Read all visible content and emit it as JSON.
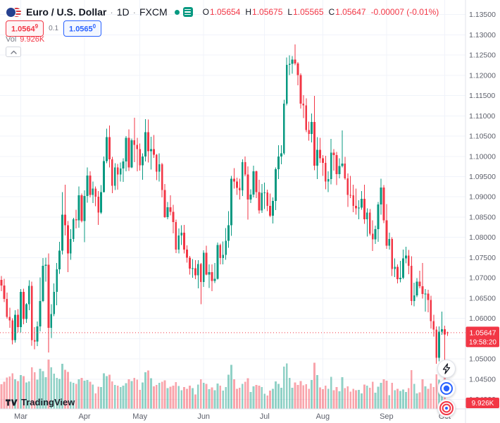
{
  "header": {
    "title": {
      "symbol": "Euro / U.S. Dollar",
      "dot": "·",
      "interval": "1D",
      "exchange": "FXCM"
    },
    "ohlc": {
      "open_label": "O",
      "open": "1.05654",
      "high_label": "H",
      "high": "1.05675",
      "low_label": "L",
      "low": "1.05565",
      "close_label": "C",
      "close": "1.05647",
      "change": "-0.00007 (-0.01%)"
    },
    "trade": {
      "sell_main": "1.0564",
      "sell_sup": "9",
      "spread": "0.1",
      "buy_main": "1.0565",
      "buy_sup": "0"
    },
    "volume": {
      "label": "Vol",
      "value": "9.926K"
    }
  },
  "attribution": {
    "text": "TradingView"
  },
  "chart_data": {
    "type": "candlestick",
    "title": "Euro / U.S. Dollar · 1D · FXCM",
    "symbol": "EUR/USD",
    "interval": "1D",
    "exchange": "FXCM",
    "price_axis": {
      "min": 1.038,
      "max": 1.1372,
      "ticks": [
        "1.13500",
        "1.13000",
        "1.12500",
        "1.12000",
        "1.11500",
        "1.11000",
        "1.10500",
        "1.10000",
        "1.09500",
        "1.09000",
        "1.08500",
        "1.08000",
        "1.07500",
        "1.07000",
        "1.06500",
        "1.06000",
        "1.05500",
        "1.05000",
        "1.04500",
        "1.04000"
      ]
    },
    "time_axis": {
      "months": [
        {
          "label": "Mar",
          "index": 7
        },
        {
          "label": "Apr",
          "index": 30
        },
        {
          "label": "May",
          "index": 50
        },
        {
          "label": "Jun",
          "index": 73
        },
        {
          "label": "Jul",
          "index": 95
        },
        {
          "label": "Aug",
          "index": 116
        },
        {
          "label": "Sep",
          "index": 139
        },
        {
          "label": "Oct",
          "index": 160
        }
      ]
    },
    "current": {
      "price": "1.05647",
      "countdown": "19:58:20",
      "volume": "9.926K",
      "direction": "down"
    },
    "colors": {
      "up": "#089981",
      "down": "#f23645",
      "grid": "#f0f3fa",
      "axis_text": "#5d606b",
      "current": "#f23645",
      "accent_blue": "#2962ff"
    },
    "volume_opacity": 0.45,
    "candles": [
      [
        1.0695,
        1.0705,
        1.0667,
        1.0681,
        155
      ],
      [
        1.0681,
        1.0698,
        1.064,
        1.0648,
        171
      ],
      [
        1.0648,
        1.0664,
        1.0599,
        1.0604,
        198
      ],
      [
        1.0604,
        1.0626,
        1.0577,
        1.0595,
        204
      ],
      [
        1.0595,
        1.06,
        1.0536,
        1.0546,
        226
      ],
      [
        1.0546,
        1.062,
        1.054,
        1.0609,
        188
      ],
      [
        1.0609,
        1.0623,
        1.0565,
        1.0578,
        176
      ],
      [
        1.0578,
        1.0672,
        1.0565,
        1.0665,
        214
      ],
      [
        1.0665,
        1.0673,
        1.0585,
        1.0598,
        207
      ],
      [
        1.0598,
        1.0638,
        1.0589,
        1.0635,
        167
      ],
      [
        1.0635,
        1.0694,
        1.062,
        1.068,
        173
      ],
      [
        1.068,
        1.0691,
        1.0532,
        1.0546,
        262
      ],
      [
        1.0546,
        1.0578,
        1.0524,
        1.0543,
        231
      ],
      [
        1.0543,
        1.0592,
        1.0531,
        1.058,
        186
      ],
      [
        1.058,
        1.0701,
        1.0568,
        1.0643,
        255
      ],
      [
        1.0643,
        1.0749,
        1.064,
        1.073,
        238
      ],
      [
        1.073,
        1.075,
        1.0691,
        1.0732,
        201
      ],
      [
        1.0732,
        1.076,
        1.0516,
        1.0577,
        312
      ],
      [
        1.0577,
        1.0635,
        1.0551,
        1.0611,
        264
      ],
      [
        1.0611,
        1.0686,
        1.0605,
        1.0665,
        222
      ],
      [
        1.0665,
        1.0737,
        1.0632,
        1.0721,
        196
      ],
      [
        1.0721,
        1.0789,
        1.071,
        1.0767,
        189
      ],
      [
        1.0767,
        1.0912,
        1.0758,
        1.0856,
        286
      ],
      [
        1.0856,
        1.093,
        1.0805,
        1.083,
        247
      ],
      [
        1.083,
        1.084,
        1.0714,
        1.076,
        233
      ],
      [
        1.076,
        1.082,
        1.0745,
        1.0796,
        172
      ],
      [
        1.0796,
        1.0848,
        1.0789,
        1.0845,
        164
      ],
      [
        1.0845,
        1.0868,
        1.0822,
        1.0842,
        158
      ],
      [
        1.0842,
        1.0926,
        1.0824,
        1.0904,
        187
      ],
      [
        1.0904,
        1.0908,
        1.0837,
        1.084,
        196
      ],
      [
        1.084,
        1.0916,
        1.0788,
        1.0902,
        178
      ],
      [
        1.0902,
        1.0973,
        1.0886,
        1.0953,
        182
      ],
      [
        1.0953,
        1.0963,
        1.0899,
        1.0905,
        171
      ],
      [
        1.0905,
        1.0938,
        1.0885,
        1.092,
        153
      ],
      [
        1.092,
        1.0926,
        1.0877,
        1.09,
        98
      ],
      [
        1.09,
        1.0914,
        1.0831,
        1.0861,
        141
      ],
      [
        1.0861,
        1.0929,
        1.0858,
        1.0912,
        139
      ],
      [
        1.0912,
        1.1,
        1.0911,
        1.0988,
        224
      ],
      [
        1.0988,
        1.1068,
        1.0983,
        1.1047,
        208
      ],
      [
        1.1047,
        1.1076,
        1.0973,
        1.0993,
        216
      ],
      [
        1.0993,
        1.0999,
        1.0909,
        1.0927,
        174
      ],
      [
        1.0927,
        1.0983,
        1.0917,
        1.0973,
        152
      ],
      [
        1.0973,
        1.0981,
        1.0918,
        1.0955,
        148
      ],
      [
        1.0955,
        1.0985,
        1.0938,
        1.097,
        139
      ],
      [
        1.097,
        1.0995,
        1.0937,
        1.0987,
        146
      ],
      [
        1.0987,
        1.105,
        1.0963,
        1.1046,
        163
      ],
      [
        1.1046,
        1.1067,
        1.0964,
        1.0973,
        188
      ],
      [
        1.0973,
        1.1044,
        1.0971,
        1.104,
        176
      ],
      [
        1.104,
        1.1095,
        1.0986,
        1.1028,
        197
      ],
      [
        1.1028,
        1.1046,
        1.0963,
        1.1018,
        184
      ],
      [
        1.1018,
        1.1032,
        1.0965,
        1.0978,
        121
      ],
      [
        1.0978,
        1.1007,
        1.0942,
        1.1,
        168
      ],
      [
        1.1,
        1.1092,
        1.0987,
        1.106,
        231
      ],
      [
        1.106,
        1.1091,
        1.0985,
        1.1013,
        242
      ],
      [
        1.1013,
        1.1048,
        1.0967,
        1.1018,
        193
      ],
      [
        1.1018,
        1.1053,
        1.0996,
        1.1004,
        142
      ],
      [
        1.1004,
        1.1006,
        1.0941,
        1.0962,
        151
      ],
      [
        1.0962,
        1.1007,
        1.0938,
        1.098,
        164
      ],
      [
        1.098,
        1.0984,
        1.0899,
        1.0917,
        172
      ],
      [
        1.0917,
        1.0932,
        1.0848,
        1.085,
        181
      ],
      [
        1.085,
        1.0887,
        1.0845,
        1.0874,
        132
      ],
      [
        1.0874,
        1.0904,
        1.0854,
        1.0863,
        141
      ],
      [
        1.0863,
        1.088,
        1.081,
        1.0838,
        147
      ],
      [
        1.0838,
        1.0844,
        1.0761,
        1.077,
        169
      ],
      [
        1.077,
        1.0822,
        1.076,
        1.0805,
        144
      ],
      [
        1.0805,
        1.083,
        1.0781,
        1.0812,
        118
      ],
      [
        1.0812,
        1.0831,
        1.076,
        1.077,
        139
      ],
      [
        1.077,
        1.078,
        1.0738,
        1.075,
        128
      ],
      [
        1.075,
        1.0754,
        1.0708,
        1.0723,
        146
      ],
      [
        1.0723,
        1.0746,
        1.07,
        1.0724,
        131
      ],
      [
        1.0724,
        1.0744,
        1.0697,
        1.0706,
        92
      ],
      [
        1.0706,
        1.0744,
        1.0674,
        1.0734,
        153
      ],
      [
        1.0734,
        1.0737,
        1.0635,
        1.069,
        187
      ],
      [
        1.069,
        1.0768,
        1.0678,
        1.0762,
        166
      ],
      [
        1.0762,
        1.0779,
        1.0706,
        1.0708,
        158
      ],
      [
        1.0708,
        1.0733,
        1.0675,
        1.0714,
        124
      ],
      [
        1.0714,
        1.0733,
        1.0667,
        1.0692,
        137
      ],
      [
        1.0692,
        1.0737,
        1.0687,
        1.0698,
        119
      ],
      [
        1.0698,
        1.0787,
        1.0696,
        1.0781,
        161
      ],
      [
        1.0781,
        1.0785,
        1.0733,
        1.0749,
        148
      ],
      [
        1.0749,
        1.079,
        1.0733,
        1.0757,
        117
      ],
      [
        1.0757,
        1.0823,
        1.0745,
        1.0792,
        139
      ],
      [
        1.0792,
        1.0865,
        1.0774,
        1.083,
        216
      ],
      [
        1.083,
        1.0952,
        1.0804,
        1.0945,
        278
      ],
      [
        1.0945,
        1.0971,
        1.092,
        1.0938,
        187
      ],
      [
        1.0938,
        1.0947,
        1.0905,
        1.0922,
        126
      ],
      [
        1.0922,
        1.0945,
        1.0893,
        1.0916,
        134
      ],
      [
        1.0916,
        1.0993,
        1.0902,
        1.0986,
        158
      ],
      [
        1.0986,
        1.1,
        1.0951,
        1.0955,
        171
      ],
      [
        1.0955,
        1.0975,
        1.0844,
        1.0893,
        194
      ],
      [
        1.0893,
        1.0919,
        1.0885,
        1.0906,
        108
      ],
      [
        1.0906,
        1.0977,
        1.0899,
        1.0963,
        142
      ],
      [
        1.0963,
        1.0965,
        1.0897,
        1.0912,
        151
      ],
      [
        1.0912,
        1.0942,
        1.0859,
        1.0866,
        147
      ],
      [
        1.0866,
        1.0932,
        1.086,
        1.091,
        139
      ],
      [
        1.091,
        1.0935,
        1.087,
        1.0911,
        96
      ],
      [
        1.0911,
        1.0918,
        1.0865,
        1.0878,
        84
      ],
      [
        1.0878,
        1.0908,
        1.085,
        1.0853,
        117
      ],
      [
        1.0853,
        1.0899,
        1.0834,
        1.089,
        128
      ],
      [
        1.089,
        1.0973,
        1.0867,
        1.0968,
        173
      ],
      [
        1.0968,
        1.1027,
        1.0944,
        1.1,
        158
      ],
      [
        1.1,
        1.1027,
        1.098,
        1.1007,
        134
      ],
      [
        1.1007,
        1.114,
        1.1004,
        1.113,
        267
      ],
      [
        1.113,
        1.1244,
        1.1126,
        1.1226,
        288
      ],
      [
        1.1226,
        1.1249,
        1.1201,
        1.1228,
        196
      ],
      [
        1.1228,
        1.1248,
        1.1204,
        1.1239,
        133
      ],
      [
        1.1239,
        1.1276,
        1.1225,
        1.1229,
        168
      ],
      [
        1.1229,
        1.1233,
        1.1175,
        1.1201,
        151
      ],
      [
        1.1201,
        1.1205,
        1.1118,
        1.113,
        176
      ],
      [
        1.113,
        1.1151,
        1.1094,
        1.1126,
        149
      ],
      [
        1.1126,
        1.1143,
        1.106,
        1.1065,
        157
      ],
      [
        1.1065,
        1.1086,
        1.1039,
        1.1055,
        128
      ],
      [
        1.1055,
        1.1106,
        1.1034,
        1.1085,
        182
      ],
      [
        1.1085,
        1.1149,
        1.0966,
        1.0977,
        291
      ],
      [
        1.0977,
        1.1047,
        1.0944,
        1.1016,
        214
      ],
      [
        1.1016,
        1.1046,
        1.0984,
        1.0995,
        136
      ],
      [
        1.0995,
        1.1003,
        1.0952,
        1.0984,
        124
      ],
      [
        1.0984,
        1.1001,
        1.0919,
        1.0938,
        146
      ],
      [
        1.0938,
        1.0963,
        1.0912,
        1.0944,
        127
      ],
      [
        1.0944,
        1.1043,
        1.0931,
        1.1009,
        203
      ],
      [
        1.1009,
        1.1018,
        1.0965,
        1.1003,
        118
      ],
      [
        1.1003,
        1.1011,
        1.0929,
        1.0956,
        139
      ],
      [
        1.0956,
        1.0995,
        1.0946,
        1.0976,
        112
      ],
      [
        1.0976,
        1.1064,
        1.0973,
        1.0982,
        201
      ],
      [
        1.0982,
        1.0999,
        1.0942,
        1.0946,
        131
      ],
      [
        1.0946,
        1.0958,
        1.0875,
        1.0905,
        142
      ],
      [
        1.0905,
        1.0952,
        1.0897,
        1.0904,
        109
      ],
      [
        1.0904,
        1.093,
        1.0862,
        1.0878,
        126
      ],
      [
        1.0878,
        1.092,
        1.0856,
        1.0872,
        118
      ],
      [
        1.0872,
        1.0892,
        1.0845,
        1.0873,
        121
      ],
      [
        1.0873,
        1.0914,
        1.0868,
        1.0895,
        97
      ],
      [
        1.0895,
        1.093,
        1.0833,
        1.0845,
        153
      ],
      [
        1.0845,
        1.0872,
        1.0802,
        1.0861,
        147
      ],
      [
        1.0861,
        1.087,
        1.0805,
        1.0809,
        134
      ],
      [
        1.0809,
        1.0842,
        1.0766,
        1.0795,
        172
      ],
      [
        1.0795,
        1.0829,
        1.0784,
        1.082,
        103
      ],
      [
        1.082,
        1.0887,
        1.0789,
        1.0881,
        141
      ],
      [
        1.0881,
        1.0945,
        1.0856,
        1.0923,
        166
      ],
      [
        1.0923,
        1.0929,
        1.0835,
        1.0842,
        187
      ],
      [
        1.0842,
        1.0882,
        1.0772,
        1.0779,
        178
      ],
      [
        1.0779,
        1.0812,
        1.077,
        1.0796,
        88
      ],
      [
        1.0796,
        1.08,
        1.0705,
        1.0722,
        164
      ],
      [
        1.0722,
        1.0748,
        1.0702,
        1.0727,
        119
      ],
      [
        1.0727,
        1.0733,
        1.0686,
        1.0697,
        127
      ],
      [
        1.0697,
        1.0742,
        1.0689,
        1.07,
        113
      ],
      [
        1.07,
        1.077,
        1.0697,
        1.0748,
        122
      ],
      [
        1.0748,
        1.0777,
        1.0736,
        1.0755,
        108
      ],
      [
        1.0755,
        1.0769,
        1.0709,
        1.073,
        131
      ],
      [
        1.073,
        1.0753,
        1.0632,
        1.0643,
        246
      ],
      [
        1.0643,
        1.0688,
        1.063,
        1.0657,
        158
      ],
      [
        1.0657,
        1.0699,
        1.0652,
        1.0691,
        97
      ],
      [
        1.0691,
        1.0718,
        1.0674,
        1.0679,
        104
      ],
      [
        1.0679,
        1.0737,
        1.0649,
        1.066,
        187
      ],
      [
        1.066,
        1.0672,
        1.0617,
        1.0661,
        142
      ],
      [
        1.0661,
        1.0671,
        1.0615,
        1.0645,
        126
      ],
      [
        1.0645,
        1.0656,
        1.0575,
        1.0593,
        161
      ],
      [
        1.0593,
        1.0609,
        1.0555,
        1.0572,
        138
      ],
      [
        1.0572,
        1.058,
        1.0488,
        1.0503,
        219
      ],
      [
        1.0503,
        1.058,
        1.0494,
        1.0567,
        184
      ],
      [
        1.0567,
        1.0617,
        1.0559,
        1.0573,
        129
      ],
      [
        1.0573,
        1.0582,
        1.048,
        1.056,
        198
      ],
      [
        1.05654,
        1.05675,
        1.05565,
        1.05647,
        9.926
      ]
    ]
  }
}
